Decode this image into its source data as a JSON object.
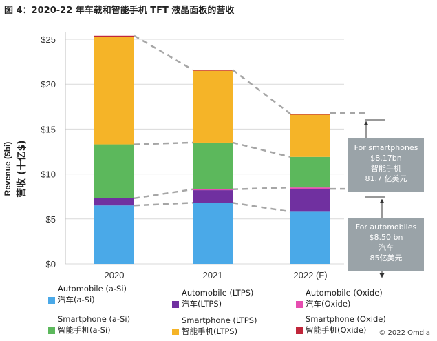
{
  "title": "图 4：2020-22 年车载和智能手机 TFT 液晶面板的营收",
  "copyright": "© 2022 Omdia",
  "colors": {
    "automobile_asi": "#4aa9e8",
    "automobile_ltps": "#7030a0",
    "automobile_oxide": "#e64db0",
    "smartphone_asi": "#5cb85c",
    "smartphone_ltps": "#f5b428",
    "smartphone_oxide": "#c0263a",
    "callout_bg": "#9aa3a8",
    "dash": "#a6a6a6"
  },
  "chart_data": {
    "type": "bar",
    "stacked": true,
    "categories": [
      "2020",
      "2021",
      "2022 (F)"
    ],
    "ylabel_en": "Revenue ($bi)",
    "ylabel_zh": "营收 (十亿$)",
    "ylim": [
      0,
      25
    ],
    "yticks": [
      "$0",
      "$5",
      "$10",
      "$15",
      "$20",
      "$25"
    ],
    "ytick_values": [
      0,
      5,
      10,
      15,
      20,
      25
    ],
    "grid": true,
    "series": [
      {
        "key": "automobile_asi",
        "name": "Automobile (a-Si)",
        "name_zh": "汽车(a-Si)",
        "values": [
          6.5,
          6.8,
          5.8
        ]
      },
      {
        "key": "automobile_ltps",
        "name": "Automobile (LTPS)",
        "name_zh": "汽车(LTPS)",
        "values": [
          0.8,
          1.4,
          2.5
        ]
      },
      {
        "key": "automobile_oxide",
        "name": "Automobile (Oxide)",
        "name_zh": "汽车(Oxide)",
        "values": [
          0.0,
          0.1,
          0.2
        ]
      },
      {
        "key": "smartphone_asi",
        "name": "Smartphone (a-Si)",
        "name_zh": "智能手机(a-Si)",
        "values": [
          6.0,
          5.2,
          3.4
        ]
      },
      {
        "key": "smartphone_ltps",
        "name": "Smartphone (LTPS)",
        "name_zh": "智能手机(LTPS)",
        "values": [
          12.0,
          8.0,
          4.7
        ]
      },
      {
        "key": "smartphone_oxide",
        "name": "Smartphone (Oxide)",
        "name_zh": "智能手机(Oxide)",
        "values": [
          0.1,
          0.1,
          0.1
        ]
      }
    ],
    "annotations": {
      "smartphones": [
        "For smartphones",
        "$8.17bn",
        "智能手机",
        "81.7 亿美元"
      ],
      "automobiles": [
        "For automobiles",
        "$8.50 bn",
        "汽车",
        "85亿美元"
      ]
    }
  },
  "legend": [
    {
      "key": "automobile_asi",
      "line1": "Automobile (a-Si)",
      "line2": "汽车(a-Si)"
    },
    {
      "key": "automobile_ltps",
      "line1": "Automobile (LTPS)",
      "line2": "汽车(LTPS)"
    },
    {
      "key": "automobile_oxide",
      "line1": "Automobile (Oxide)",
      "line2": "汽车(Oxide)"
    },
    {
      "key": "smartphone_asi",
      "line1": "Smartphone (a-Si)",
      "line2": "智能手机(a-Si)"
    },
    {
      "key": "smartphone_ltps",
      "line1": "Smartphone (LTPS)",
      "line2": "智能手机(LTPS)"
    },
    {
      "key": "smartphone_oxide",
      "line1": "Smartphone (Oxide)",
      "line2": "智能手机(Oxide)"
    }
  ]
}
